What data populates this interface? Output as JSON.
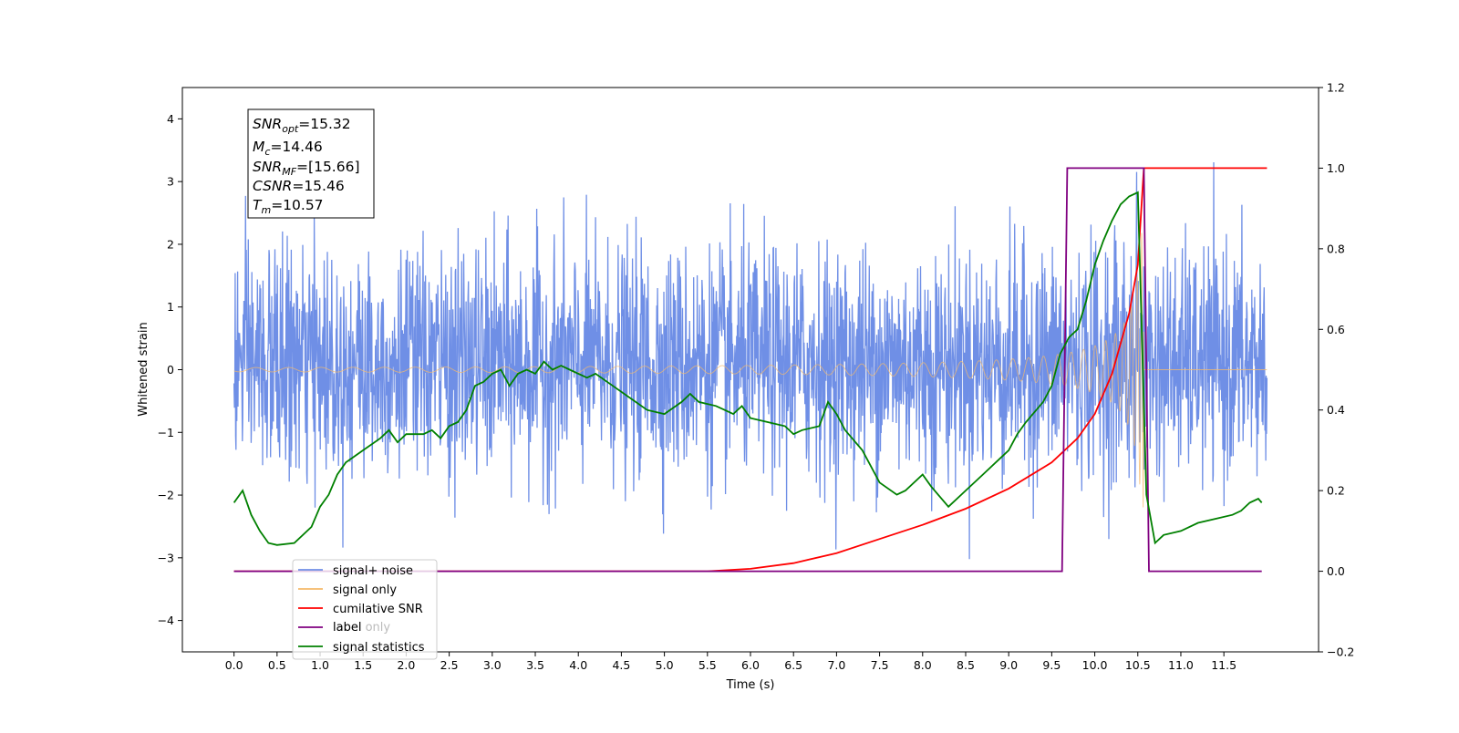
{
  "chart_data": {
    "type": "line",
    "title": "",
    "xlabel": "Time (s)",
    "ylabel": "Whitened strain",
    "xlim": [
      -0.6,
      12.6
    ],
    "ylim_left": [
      -4.5,
      4.5
    ],
    "ylim_right": [
      -0.2,
      1.2
    ],
    "x_ticks": [
      "0.0",
      "0.5",
      "1.0",
      "1.5",
      "2.0",
      "2.5",
      "3.0",
      "3.5",
      "4.0",
      "4.5",
      "5.0",
      "5.5",
      "6.0",
      "6.5",
      "7.0",
      "7.5",
      "8.0",
      "8.5",
      "9.0",
      "9.5",
      "10.0",
      "10.5",
      "11.0",
      "11.5"
    ],
    "y_ticks_left": [
      "4",
      "3",
      "2",
      "1",
      "0",
      "−1",
      "−2",
      "−3",
      "−4"
    ],
    "y_ticks_right": [
      "1.2",
      "1.0",
      "0.8",
      "0.6",
      "0.4",
      "0.2",
      "0.0",
      "−0.2"
    ],
    "grid": false,
    "legend_position": "lower-left",
    "series": [
      {
        "name": "signal+ noise",
        "axis": "left",
        "color": "#6f8fe6",
        "description": "noise std approx 0.9 over 0 to 12 s"
      },
      {
        "name": "signal only",
        "axis": "left",
        "color": "#f5b96a",
        "chirp_end": 10.57,
        "chirp_peak_amplitude": 2.2
      },
      {
        "name": "cumilative SNR",
        "axis": "right",
        "color": "#ff0000",
        "x": [
          0.0,
          5.5,
          6.0,
          6.5,
          7.0,
          7.5,
          8.0,
          8.5,
          9.0,
          9.5,
          9.8,
          10.0,
          10.2,
          10.4,
          10.5,
          10.57,
          11.0,
          11.5,
          12.0
        ],
        "y": [
          0.0,
          0.0,
          0.006,
          0.02,
          0.045,
          0.08,
          0.115,
          0.155,
          0.205,
          0.27,
          0.33,
          0.39,
          0.49,
          0.64,
          0.76,
          1.0,
          1.0,
          1.0,
          1.0
        ]
      },
      {
        "name": "label",
        "axis": "right",
        "color": "#800080",
        "x": [
          0.0,
          9.62,
          9.68,
          10.57,
          10.63,
          11.94
        ],
        "y": [
          0.0,
          0.0,
          1.0,
          1.0,
          0.0,
          0.0
        ]
      },
      {
        "name": "label only",
        "axis": "right",
        "color": "#800080",
        "hidden": true
      },
      {
        "name": "signal statistics",
        "axis": "right",
        "color": "#008000",
        "x": [
          0.0,
          0.1,
          0.2,
          0.3,
          0.4,
          0.5,
          0.7,
          0.9,
          1.0,
          1.1,
          1.2,
          1.3,
          1.5,
          1.7,
          1.8,
          1.9,
          2.0,
          2.2,
          2.3,
          2.4,
          2.5,
          2.6,
          2.7,
          2.8,
          2.9,
          3.0,
          3.1,
          3.2,
          3.3,
          3.4,
          3.5,
          3.6,
          3.7,
          3.8,
          3.9,
          4.0,
          4.1,
          4.2,
          4.4,
          4.6,
          4.8,
          5.0,
          5.2,
          5.3,
          5.4,
          5.6,
          5.7,
          5.8,
          5.9,
          6.0,
          6.2,
          6.4,
          6.5,
          6.6,
          6.8,
          6.9,
          7.0,
          7.1,
          7.3,
          7.5,
          7.7,
          7.8,
          8.0,
          8.1,
          8.3,
          8.5,
          8.7,
          8.9,
          9.0,
          9.1,
          9.2,
          9.4,
          9.5,
          9.6,
          9.7,
          9.8,
          9.9,
          10.0,
          10.1,
          10.2,
          10.3,
          10.4,
          10.5,
          10.6,
          10.7,
          10.8,
          11.0,
          11.2,
          11.4,
          11.6,
          11.7,
          11.8,
          11.9,
          11.94
        ],
        "y": [
          0.17,
          0.2,
          0.14,
          0.1,
          0.07,
          0.065,
          0.07,
          0.11,
          0.16,
          0.19,
          0.24,
          0.27,
          0.3,
          0.33,
          0.35,
          0.32,
          0.34,
          0.34,
          0.35,
          0.33,
          0.36,
          0.37,
          0.4,
          0.46,
          0.47,
          0.49,
          0.5,
          0.46,
          0.49,
          0.5,
          0.49,
          0.52,
          0.5,
          0.51,
          0.5,
          0.49,
          0.48,
          0.49,
          0.46,
          0.43,
          0.4,
          0.39,
          0.42,
          0.44,
          0.42,
          0.41,
          0.4,
          0.39,
          0.41,
          0.38,
          0.37,
          0.36,
          0.34,
          0.35,
          0.36,
          0.42,
          0.39,
          0.35,
          0.3,
          0.22,
          0.19,
          0.2,
          0.24,
          0.21,
          0.16,
          0.2,
          0.24,
          0.28,
          0.3,
          0.34,
          0.37,
          0.42,
          0.46,
          0.54,
          0.58,
          0.6,
          0.67,
          0.76,
          0.82,
          0.87,
          0.91,
          0.93,
          0.94,
          0.19,
          0.07,
          0.09,
          0.1,
          0.12,
          0.13,
          0.14,
          0.15,
          0.17,
          0.18,
          0.17
        ]
      }
    ]
  },
  "annotation": {
    "snr_opt": {
      "main": "SNR",
      "sub": "opt",
      "value": "=15.32"
    },
    "mc": {
      "main": "M",
      "sub": "c",
      "value": "=14.46"
    },
    "snr_mf": {
      "main": "SNR",
      "sub": "MF",
      "value": "=[15.66]"
    },
    "csnr": {
      "main": "CSNR",
      "sub": "",
      "value": "=15.46"
    },
    "tm": {
      "main": "T",
      "sub": "m",
      "value": "=10.57"
    }
  }
}
